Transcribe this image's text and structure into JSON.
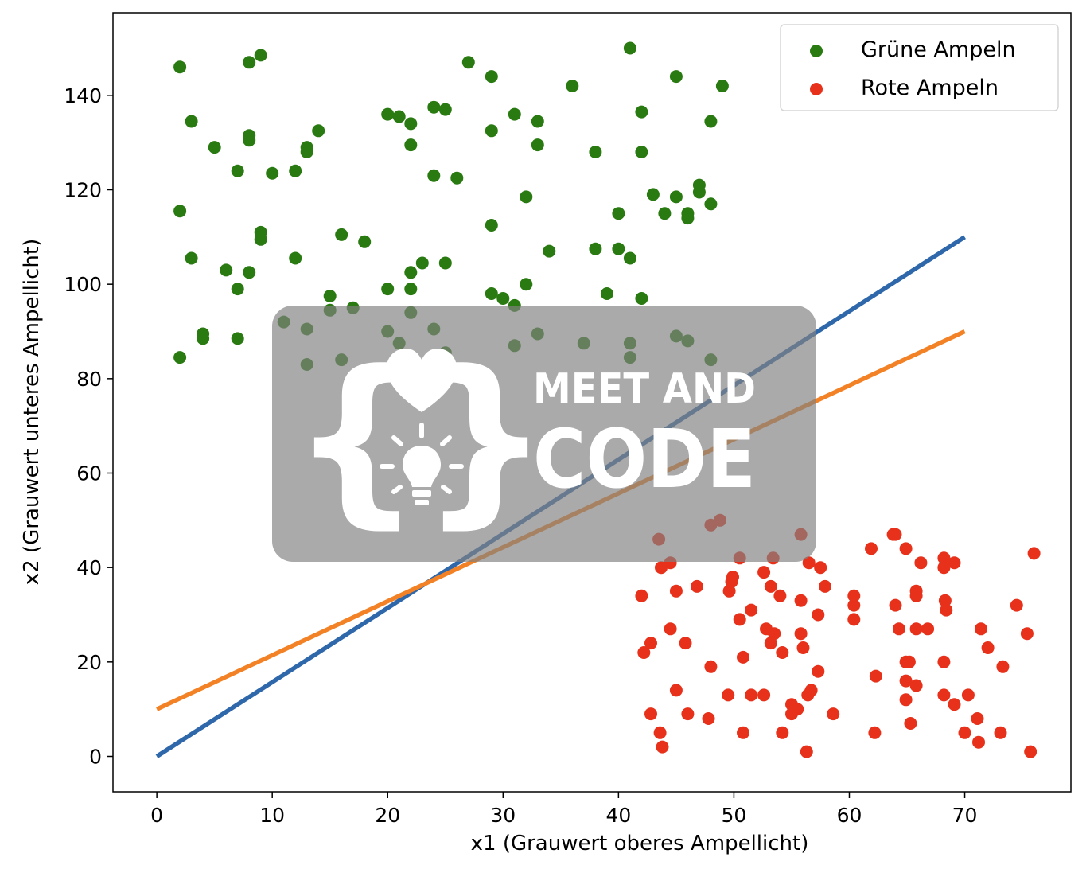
{
  "chart_data": {
    "type": "scatter",
    "xlabel": "x1 (Grauwert oberes Ampellicht)",
    "ylabel": "x2 (Grauwert unteres Ampellicht)",
    "xlim": [
      -3.8,
      79.2
    ],
    "ylim": [
      -7.5,
      157.5
    ],
    "xticks": [
      0,
      10,
      20,
      30,
      40,
      50,
      60,
      70
    ],
    "yticks": [
      0,
      20,
      40,
      60,
      80,
      100,
      120,
      140
    ],
    "grid": false,
    "legend_position": "top-right",
    "series": [
      {
        "name": "Grüne Ampeln",
        "kind": "scatter",
        "color": "#2a7a12",
        "points": [
          [
            2,
            146
          ],
          [
            3,
            134.5
          ],
          [
            5,
            129
          ],
          [
            8,
            147
          ],
          [
            9,
            148.5
          ],
          [
            8,
            131.5
          ],
          [
            8,
            130.5
          ],
          [
            14,
            132.5
          ],
          [
            13,
            129
          ],
          [
            13,
            128
          ],
          [
            7,
            124
          ],
          [
            10,
            123.5
          ],
          [
            12,
            124
          ],
          [
            2,
            115.5
          ],
          [
            3,
            105.5
          ],
          [
            6,
            103
          ],
          [
            7,
            99
          ],
          [
            8,
            102.5
          ],
          [
            9,
            111
          ],
          [
            9,
            109.5
          ],
          [
            12,
            105.5
          ],
          [
            16,
            110.5
          ],
          [
            18,
            109
          ],
          [
            2,
            84.5
          ],
          [
            4,
            89.5
          ],
          [
            4,
            88.5
          ],
          [
            7,
            88.5
          ],
          [
            11,
            92
          ],
          [
            13,
            90.5
          ],
          [
            13,
            83
          ],
          [
            15,
            97.5
          ],
          [
            15,
            94.5
          ],
          [
            17,
            95
          ],
          [
            16,
            84
          ],
          [
            20,
            136
          ],
          [
            21,
            135.5
          ],
          [
            22,
            134
          ],
          [
            22,
            129.5
          ],
          [
            24,
            137.5
          ],
          [
            25,
            137
          ],
          [
            24,
            123
          ],
          [
            26,
            122.5
          ],
          [
            27,
            147
          ],
          [
            29,
            144
          ],
          [
            29,
            132.5
          ],
          [
            31,
            136
          ],
          [
            33,
            134.5
          ],
          [
            33,
            129.5
          ],
          [
            32,
            118.5
          ],
          [
            29,
            112.5
          ],
          [
            22,
            102.5
          ],
          [
            23,
            104.5
          ],
          [
            25,
            104.5
          ],
          [
            20,
            99
          ],
          [
            22,
            99
          ],
          [
            22,
            94
          ],
          [
            20,
            90
          ],
          [
            21,
            87.5
          ],
          [
            24,
            90.5
          ],
          [
            25,
            85.5
          ],
          [
            29,
            98
          ],
          [
            30,
            97
          ],
          [
            31,
            95.5
          ],
          [
            32,
            100
          ],
          [
            31,
            87
          ],
          [
            33,
            89.5
          ],
          [
            34,
            107
          ],
          [
            36,
            142
          ],
          [
            38,
            128
          ],
          [
            38,
            107.5
          ],
          [
            39,
            98
          ],
          [
            37,
            87.5
          ],
          [
            40,
            115
          ],
          [
            40,
            107.5
          ],
          [
            41,
            105.5
          ],
          [
            41,
            150
          ],
          [
            42,
            136.5
          ],
          [
            42,
            128
          ],
          [
            43,
            119
          ],
          [
            42,
            97
          ],
          [
            41,
            87.5
          ],
          [
            41,
            84.5
          ],
          [
            44,
            115
          ],
          [
            45,
            118.5
          ],
          [
            46,
            115
          ],
          [
            46,
            114
          ],
          [
            45,
            89
          ],
          [
            46,
            88
          ],
          [
            47,
            121
          ],
          [
            47,
            119.5
          ],
          [
            48,
            117
          ],
          [
            48,
            134.5
          ],
          [
            45,
            144
          ],
          [
            49,
            142
          ],
          [
            48,
            84
          ]
        ]
      },
      {
        "name": "Rote Ampeln",
        "kind": "scatter",
        "color": "#e8311a",
        "points": [
          [
            43.5,
            46
          ],
          [
            43.7,
            40
          ],
          [
            44.5,
            41
          ],
          [
            42,
            34
          ],
          [
            42.2,
            22
          ],
          [
            42.8,
            24
          ],
          [
            42.8,
            9
          ],
          [
            43.6,
            5
          ],
          [
            43.8,
            2
          ],
          [
            44.5,
            27
          ],
          [
            45,
            35
          ],
          [
            45.8,
            24
          ],
          [
            45,
            14
          ],
          [
            46,
            9
          ],
          [
            46.8,
            36
          ],
          [
            48,
            49
          ],
          [
            48.8,
            50
          ],
          [
            48,
            19
          ],
          [
            47.8,
            8
          ],
          [
            49.5,
            13
          ],
          [
            49.6,
            35
          ],
          [
            49.8,
            37
          ],
          [
            49.9,
            38
          ],
          [
            50.5,
            42
          ],
          [
            50.5,
            29
          ],
          [
            50.8,
            21
          ],
          [
            50.8,
            5
          ],
          [
            51.5,
            31
          ],
          [
            51.5,
            13
          ],
          [
            52.6,
            13
          ],
          [
            52.6,
            39
          ],
          [
            53.2,
            36
          ],
          [
            53.4,
            42
          ],
          [
            54,
            34
          ],
          [
            52.8,
            27
          ],
          [
            53.2,
            24
          ],
          [
            53.5,
            26
          ],
          [
            54.2,
            22
          ],
          [
            54.2,
            5
          ],
          [
            55,
            11
          ],
          [
            55,
            9
          ],
          [
            55.5,
            10
          ],
          [
            55.8,
            47
          ],
          [
            55.8,
            33
          ],
          [
            55.8,
            26
          ],
          [
            56,
            23
          ],
          [
            56.3,
            1
          ],
          [
            56.5,
            41
          ],
          [
            56.4,
            13
          ],
          [
            56.7,
            14
          ],
          [
            57.3,
            30
          ],
          [
            57.3,
            18
          ],
          [
            57.5,
            40
          ],
          [
            57.9,
            36
          ],
          [
            58.6,
            9
          ],
          [
            60.4,
            34
          ],
          [
            60.4,
            32
          ],
          [
            60.4,
            29
          ],
          [
            61.9,
            44
          ],
          [
            62.3,
            17
          ],
          [
            62.2,
            5
          ],
          [
            63.8,
            47
          ],
          [
            64,
            47
          ],
          [
            64,
            32
          ],
          [
            64.3,
            27
          ],
          [
            64.9,
            44
          ],
          [
            64.9,
            20
          ],
          [
            64.9,
            16
          ],
          [
            64.9,
            12
          ],
          [
            65.2,
            20
          ],
          [
            65.3,
            7
          ],
          [
            65.8,
            35
          ],
          [
            65.8,
            34
          ],
          [
            65.8,
            27
          ],
          [
            65.8,
            15
          ],
          [
            66.2,
            41
          ],
          [
            66.8,
            27
          ],
          [
            68.2,
            42
          ],
          [
            68.2,
            40
          ],
          [
            68.3,
            33
          ],
          [
            68.4,
            31
          ],
          [
            68.2,
            20
          ],
          [
            68.2,
            13
          ],
          [
            69.1,
            41
          ],
          [
            69.1,
            11
          ],
          [
            70,
            5
          ],
          [
            70.3,
            13
          ],
          [
            71.1,
            8
          ],
          [
            71.2,
            3
          ],
          [
            71.4,
            27
          ],
          [
            72,
            23
          ],
          [
            73.1,
            5
          ],
          [
            73.3,
            19
          ],
          [
            74.5,
            32
          ],
          [
            75.4,
            26
          ],
          [
            75.7,
            1
          ],
          [
            76,
            43
          ]
        ]
      },
      {
        "name": "",
        "kind": "line",
        "color": "#2f68aa",
        "points": [
          [
            0,
            0
          ],
          [
            70,
            110
          ]
        ]
      },
      {
        "name": "",
        "kind": "line",
        "color": "#f28225",
        "points": [
          [
            0,
            10
          ],
          [
            70,
            90
          ]
        ]
      }
    ]
  },
  "watermark": {
    "line1": "MEET AND",
    "line2": "CODE",
    "brace_left": "{",
    "brace_right": "}",
    "heart_icon": "heart-icon",
    "bulb_icon": "lightbulb-icon"
  }
}
